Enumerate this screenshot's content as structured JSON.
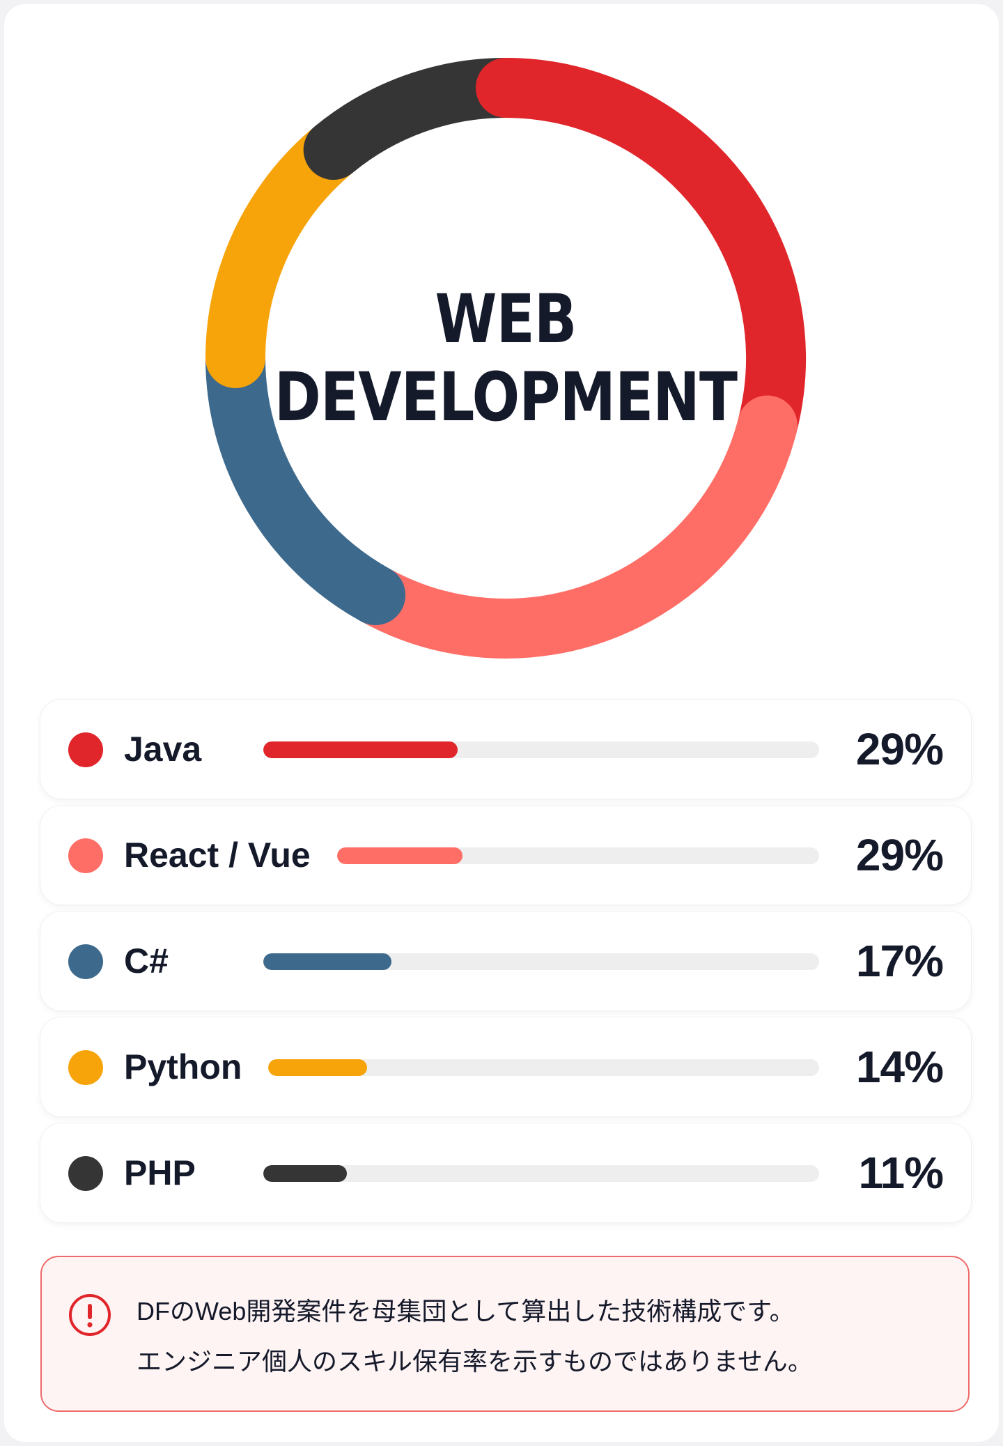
{
  "chart_data": {
    "type": "donut",
    "center_title": [
      "WEB",
      "DEVELOPMENT"
    ],
    "categories": [
      "Java",
      "React / Vue",
      "C#",
      "Python",
      "PHP"
    ],
    "values": [
      29,
      29,
      17,
      14,
      11
    ],
    "value_labels": [
      "29%",
      "29%",
      "17%",
      "14%",
      "11%"
    ],
    "colors": [
      "#e0262a",
      "#ff6e66",
      "#3d698c",
      "#f7a30a",
      "#353535"
    ],
    "bar_fill_fractions": [
      0.35,
      0.26,
      0.23,
      0.18,
      0.15
    ]
  },
  "notice": {
    "icon": "exclamation-circle-icon",
    "line1": "DFのWeb開発案件を母集団として算出した技術構成です。",
    "line2": "エンジニア個人のスキル保有率を示すものではありません。",
    "accent": "#e0262a"
  }
}
